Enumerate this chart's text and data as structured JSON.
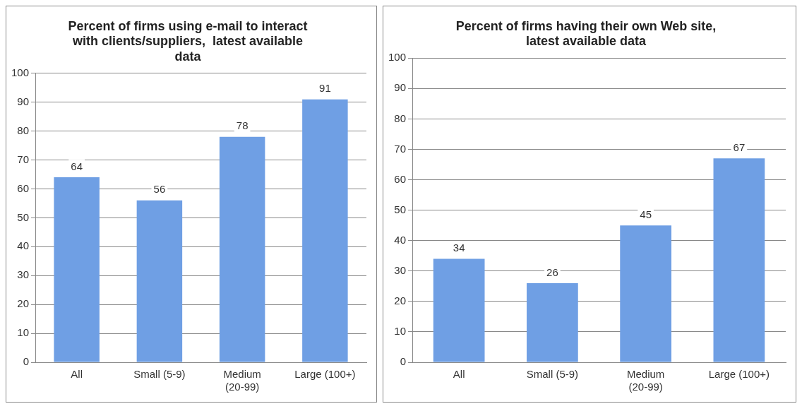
{
  "chart_data": [
    {
      "type": "bar",
      "title": "Percent of firms using e-mail to interact with clients/suppliers,  latest available data",
      "categories": [
        "All",
        "Small (5-9)",
        "Medium (20-99)",
        "Large (100+)"
      ],
      "values": [
        64,
        56,
        78,
        91
      ],
      "color": "#6f9fe4",
      "ylim": [
        0,
        100
      ],
      "yticks": [
        0,
        10,
        20,
        30,
        40,
        50,
        60,
        70,
        80,
        90,
        100
      ],
      "grid": "y",
      "data_labels": true,
      "legend": false
    },
    {
      "type": "bar",
      "title": "Percent of firms having their own Web site, latest available data",
      "categories": [
        "All",
        "Small (5-9)",
        "Medium (20-99)",
        "Large (100+)"
      ],
      "values": [
        34,
        26,
        45,
        67
      ],
      "color": "#6f9fe4",
      "ylim": [
        0,
        100
      ],
      "yticks": [
        0,
        10,
        20,
        30,
        40,
        50,
        60,
        70,
        80,
        90,
        100
      ],
      "grid": "y",
      "data_labels": true,
      "legend": false
    }
  ]
}
